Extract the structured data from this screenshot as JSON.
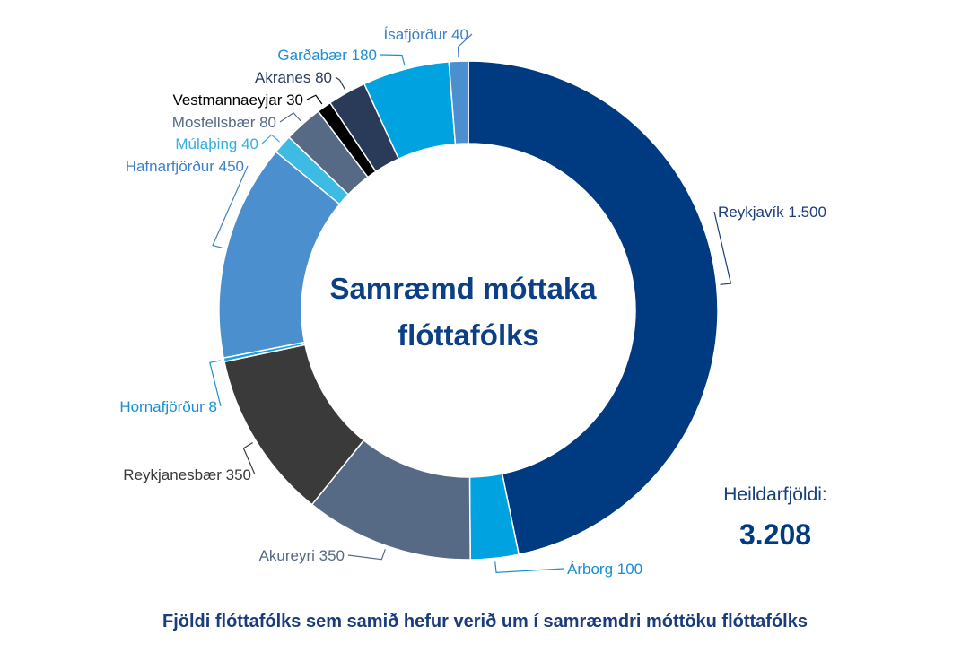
{
  "chart_data": {
    "type": "pie",
    "title": "Samræmd móttaka flóttafólks",
    "title_lines": [
      "Samræmd móttaka",
      "flóttafólks"
    ],
    "caption": "Fjöldi flóttafólks sem samið hefur verið um í samræmdri móttöku flóttafólks",
    "total_label": "Heildarfjöldi:",
    "total_value": "3.208",
    "slices": [
      {
        "name": "Reykjavík",
        "value": 1500,
        "label": "Reykjavík 1.500",
        "color": "#003a80",
        "label_color": "#1a3c7a"
      },
      {
        "name": "Árborg",
        "value": 100,
        "label": "Árborg 100",
        "color": "#00a3e0",
        "label_color": "#1a8fd0"
      },
      {
        "name": "Akureyri",
        "value": 350,
        "label": "Akureyri 350",
        "color": "#566a86",
        "label_color": "#566a86"
      },
      {
        "name": "Reykjanesbær",
        "value": 350,
        "label": "Reykjanesbær 350",
        "color": "#3a3a3a",
        "label_color": "#3a3a3a"
      },
      {
        "name": "Hornafjörður",
        "value": 8,
        "label": "Hornafjörður 8",
        "color": "#1ea0dc",
        "label_color": "#1a8fd0"
      },
      {
        "name": "Hafnarfjörður",
        "value": 450,
        "label": "Hafnarfjörður 450",
        "color": "#4b8fcf",
        "label_color": "#3e7fc6"
      },
      {
        "name": "Múlaþing",
        "value": 40,
        "label": "Múlaþing 40",
        "color": "#3dbbe4",
        "label_color": "#2fb0e0"
      },
      {
        "name": "Mosfellsbær",
        "value": 80,
        "label": "Mosfellsbær 80",
        "color": "#566a86",
        "label_color": "#566a86"
      },
      {
        "name": "Vestmannaeyjar",
        "value": 30,
        "label": "Vestmannaeyjar 30",
        "color": "#000000",
        "label_color": "#000000"
      },
      {
        "name": "Akranes",
        "value": 80,
        "label": "Akranes 80",
        "color": "#2a3b5a",
        "label_color": "#2a3b5a"
      },
      {
        "name": "Garðabær",
        "value": 180,
        "label": "Garðabær 180",
        "color": "#00a3e0",
        "label_color": "#1a8fd0"
      },
      {
        "name": "Ísafjörður",
        "value": 40,
        "label": "Ísafjörður 40",
        "color": "#4b8fcf",
        "label_color": "#3e7fc6"
      }
    ]
  }
}
